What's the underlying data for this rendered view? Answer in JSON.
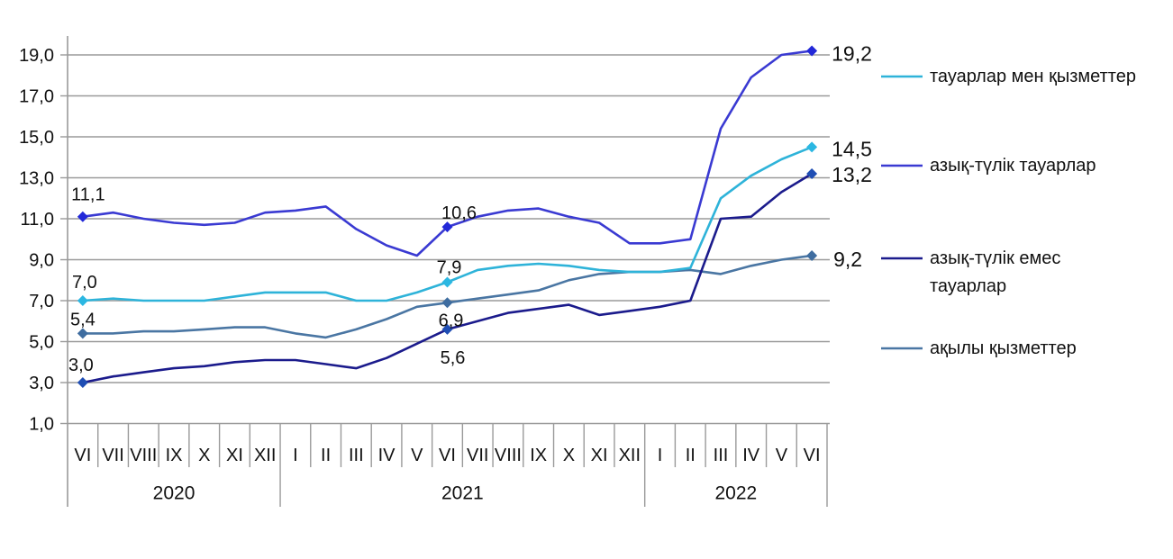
{
  "page": {
    "background": "#ffffff"
  },
  "chart_data": {
    "type": "line",
    "title": "",
    "xlabel": "",
    "ylabel": "",
    "grid": true,
    "legend_position": "right",
    "ylim": [
      1,
      19
    ],
    "ytick_step": 2,
    "yticks": [
      {
        "value": 19,
        "label": "19,0"
      },
      {
        "value": 17,
        "label": "17,0"
      },
      {
        "value": 15,
        "label": "15,0"
      },
      {
        "value": 13,
        "label": "13,0"
      },
      {
        "value": 11,
        "label": "11,0"
      },
      {
        "value": 9,
        "label": "9,0"
      },
      {
        "value": 7,
        "label": "7,0"
      },
      {
        "value": 5,
        "label": "5,0"
      },
      {
        "value": 3,
        "label": "3,0"
      },
      {
        "value": 1,
        "label": "1,0"
      }
    ],
    "x_months": [
      "VI",
      "VII",
      "VIII",
      "IX",
      "X",
      "XI",
      "XII",
      "I",
      "II",
      "III",
      "IV",
      "V",
      "VI",
      "VII",
      "VIII",
      "IX",
      "X",
      "XI",
      "XII",
      "I",
      "II",
      "III",
      "IV",
      "V",
      "VI"
    ],
    "year_groups": [
      {
        "label": "2020",
        "start": 0,
        "end": 7
      },
      {
        "label": "2021",
        "start": 7,
        "end": 19
      },
      {
        "label": "2022",
        "start": 19,
        "end": 25
      }
    ],
    "colors": {
      "grid": "#9a9a9a",
      "axis": "#9a9a9a",
      "text": "#111111"
    },
    "series": [
      {
        "name": "ақылы қызметтер",
        "color": "#4a76a3",
        "marker_color": "#3f6da0",
        "values": [
          5.4,
          5.4,
          5.5,
          5.5,
          5.6,
          5.7,
          5.7,
          5.4,
          5.2,
          5.6,
          6.1,
          6.7,
          6.9,
          7.1,
          7.3,
          7.5,
          8.0,
          8.3,
          8.4,
          8.4,
          8.5,
          8.3,
          8.7,
          9.0,
          9.2
        ],
        "labeled_points": [
          {
            "index": 0,
            "label": "5,4",
            "position": "above",
            "dx": 0,
            "dy": -15
          },
          {
            "index": 12,
            "label": "6,9",
            "position": "below",
            "dx": 4,
            "dy": 20
          },
          {
            "index": 24,
            "label": "9,2",
            "position": "right",
            "dx": 24,
            "dy": 4
          }
        ]
      },
      {
        "name": "тауарлар мен қызметтер",
        "color": "#2eb3d9",
        "marker_color": "#2bb7e2",
        "values": [
          7.0,
          7.1,
          7.0,
          7.0,
          7.0,
          7.2,
          7.4,
          7.4,
          7.4,
          7.0,
          7.0,
          7.4,
          7.9,
          8.5,
          8.7,
          8.8,
          8.7,
          8.5,
          8.4,
          8.4,
          8.6,
          12.0,
          13.1,
          13.9,
          14.5
        ],
        "labeled_points": [
          {
            "index": 0,
            "label": "7,0",
            "position": "above",
            "dx": 2,
            "dy": -20
          },
          {
            "index": 12,
            "label": "7,9",
            "position": "above",
            "dx": 2,
            "dy": -16
          },
          {
            "index": 24,
            "label": "14,5",
            "position": "right",
            "dx": 22,
            "dy": 2
          }
        ]
      },
      {
        "name": "азық-түлік тауарлар",
        "color": "#3a3ad2",
        "marker_color": "#2228d8",
        "values": [
          11.1,
          11.3,
          11.0,
          10.8,
          10.7,
          10.8,
          11.3,
          11.4,
          11.6,
          10.5,
          9.7,
          9.2,
          10.6,
          11.1,
          11.4,
          11.5,
          11.1,
          10.8,
          9.8,
          9.8,
          10.0,
          15.4,
          17.9,
          19.0,
          19.2
        ],
        "labeled_points": [
          {
            "index": 0,
            "label": "11,1",
            "position": "above",
            "dx": 6,
            "dy": -24
          },
          {
            "index": 12,
            "label": "10,6",
            "position": "above",
            "dx": 13,
            "dy": -15
          },
          {
            "index": 24,
            "label": "19,2",
            "position": "right",
            "dx": 22,
            "dy": 3
          }
        ]
      },
      {
        "name": "азық-түлік емес тауарлар",
        "color": "#1b1b8c",
        "marker_color": "#1f4eb4",
        "values": [
          3.0,
          3.3,
          3.5,
          3.7,
          3.8,
          4.0,
          4.1,
          4.1,
          3.9,
          3.7,
          4.2,
          4.9,
          5.6,
          6.0,
          6.4,
          6.6,
          6.8,
          6.3,
          6.5,
          6.7,
          7.0,
          11.0,
          11.1,
          12.3,
          13.2
        ],
        "labeled_points": [
          {
            "index": 0,
            "label": "3,0",
            "position": "above",
            "dx": -2,
            "dy": -19
          },
          {
            "index": 12,
            "label": "5,6",
            "position": "below",
            "dx": 6,
            "dy": 32
          },
          {
            "index": 24,
            "label": "13,2",
            "position": "right",
            "dx": 22,
            "dy": 1
          }
        ]
      }
    ],
    "legend": [
      {
        "series_name": "тауарлар мен қызметтер",
        "lines": [
          "тауарлар мен қызметтер"
        ],
        "color": "#2eb3d9"
      },
      {
        "series_name": "азық-түлік тауарлар",
        "lines": [
          "азық-түлік тауарлар"
        ],
        "color": "#3a3ad2"
      },
      {
        "series_name": "азық-түлік емес тауарлар",
        "lines": [
          "азық-түлік емес",
          "тауарлар"
        ],
        "color": "#1b1b8c"
      },
      {
        "series_name": "ақылы қызметтер",
        "lines": [
          "ақылы қызметтер"
        ],
        "color": "#4a76a3"
      }
    ]
  }
}
